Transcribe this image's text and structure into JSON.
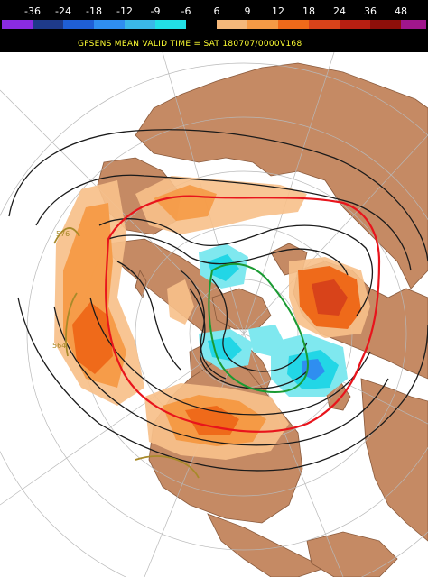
{
  "legend": {
    "labels": [
      "-36",
      "-24",
      "-18",
      "-12",
      "-9",
      "-6",
      "6",
      "9",
      "12",
      "18",
      "24",
      "36",
      "48"
    ],
    "swatches": [
      "#8a2be2",
      "#1e3a8a",
      "#1f5fd6",
      "#2f8ef0",
      "#3ab8e8",
      "#22e0e6",
      "#000000",
      "#f5b87a",
      "#f59a45",
      "#ef6a1a",
      "#d8431a",
      "#b81f12",
      "#8e0f0a",
      "#a0168c"
    ]
  },
  "title": "GFSENS MEAN VALID TIME = SAT 180707/0000V168",
  "contour_labels": {
    "l1": "576",
    "l2": "564"
  },
  "colors": {
    "ocean": "#ffffff",
    "land": "#c58a64",
    "coast": "#8a5a3c",
    "grid": "#b8b8b8",
    "pos_light": "#f7c08a",
    "pos_mid": "#f59a45",
    "pos_strong": "#ef6a1a",
    "pos_peak": "#d8431a",
    "neg_light": "#7fe8ef",
    "neg_mid": "#22d6e6",
    "neg_strong": "#2f8ef0",
    "red_contour": "#e8141c",
    "green_contour": "#1a9a32",
    "olive_contour": "#a88a2a",
    "black_contour": "#1a1a1a"
  }
}
